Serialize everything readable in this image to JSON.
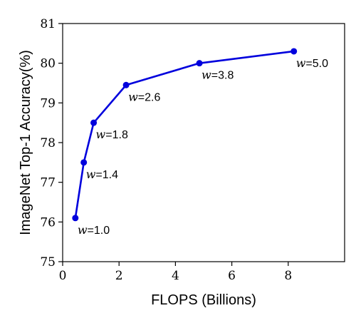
{
  "chart_data": {
    "type": "line",
    "xlabel": "FLOPS (Billions)",
    "ylabel": "ImageNet Top-1 Accuracy(%)",
    "xlim": [
      0,
      10
    ],
    "ylim": [
      75,
      81
    ],
    "xticks": [
      0,
      2,
      4,
      6,
      8
    ],
    "yticks": [
      75,
      76,
      77,
      78,
      79,
      80,
      81
    ],
    "grid": false,
    "color": "#0000dd",
    "series": [
      {
        "points": [
          {
            "x": 0.45,
            "y": 76.1,
            "label_w": "w",
            "label_v": "=1.0"
          },
          {
            "x": 0.75,
            "y": 77.5,
            "label_w": "w",
            "label_v": "=1.4"
          },
          {
            "x": 1.1,
            "y": 78.5,
            "label_w": "w",
            "label_v": "=1.8"
          },
          {
            "x": 2.25,
            "y": 79.45,
            "label_w": "w",
            "label_v": "=2.6"
          },
          {
            "x": 4.85,
            "y": 80.0,
            "label_w": "w",
            "label_v": "=3.8"
          },
          {
            "x": 8.2,
            "y": 80.3,
            "label_w": "w",
            "label_v": "=5.0"
          }
        ]
      }
    ]
  }
}
